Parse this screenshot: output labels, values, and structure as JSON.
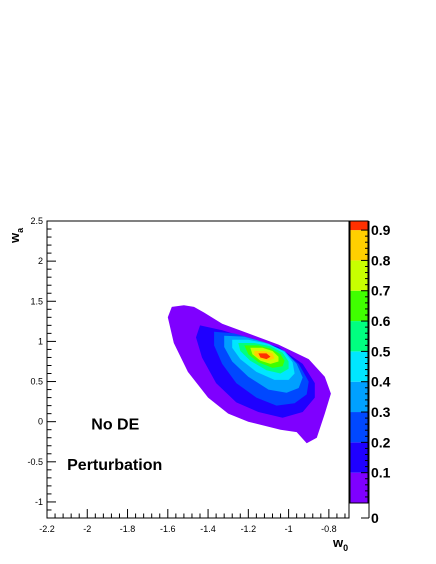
{
  "chart_data": {
    "type": "contour",
    "xlabel": "w",
    "xlabel_sub": "0",
    "ylabel": "w",
    "ylabel_sub": "a",
    "xlim": [
      -2.2,
      -0.7
    ],
    "ylim": [
      -1.2,
      2.5
    ],
    "x_ticks": [
      -2.2,
      -2,
      -1.8,
      -1.6,
      -1.4,
      -1.2,
      -1,
      -0.8
    ],
    "x_tick_labels": [
      "-2.2",
      "-2",
      "-1.8",
      "-1.6",
      "-1.4",
      "-1.2",
      "-1",
      "-0.8"
    ],
    "y_ticks": [
      -1,
      -0.5,
      0,
      0.5,
      1,
      1.5,
      2,
      2.5
    ],
    "y_tick_labels": [
      "-1",
      "-0.5",
      "0",
      "0.5",
      "1",
      "1.5",
      "2",
      "2.5"
    ],
    "grid": false,
    "colorbar": {
      "range": [
        0,
        0.93
      ],
      "ticks": [
        0,
        0.1,
        0.2,
        0.3,
        0.4,
        0.5,
        0.6,
        0.7,
        0.8,
        0.9
      ],
      "tick_labels": [
        "0",
        "0.1",
        "0.2",
        "0.3",
        "0.4",
        "0.5",
        "0.6",
        "0.7",
        "0.8",
        "0.9"
      ],
      "levels": [
        {
          "low": 0.0,
          "color": "#7f00ff"
        },
        {
          "low": 0.1,
          "color": "#1f00ff"
        },
        {
          "low": 0.2,
          "color": "#0048ff"
        },
        {
          "low": 0.3,
          "color": "#00a0ff"
        },
        {
          "low": 0.4,
          "color": "#00e6ff"
        },
        {
          "low": 0.5,
          "color": "#00ff80"
        },
        {
          "low": 0.6,
          "color": "#40ff00"
        },
        {
          "low": 0.7,
          "color": "#c8ff00"
        },
        {
          "low": 0.8,
          "color": "#ffd000"
        },
        {
          "low": 0.9,
          "color": "#ff3000"
        }
      ]
    },
    "peak": {
      "w0": -1.13,
      "wa": 0.8,
      "value": 0.93
    },
    "contours": [
      {
        "level": 0.03,
        "color": "#7f00ff",
        "points": [
          [
            -1.58,
            1.43
          ],
          [
            -1.52,
            1.45
          ],
          [
            -1.47,
            1.43
          ],
          [
            -1.42,
            1.36
          ],
          [
            -1.33,
            1.22
          ],
          [
            -1.2,
            1.1
          ],
          [
            -1.05,
            0.96
          ],
          [
            -0.9,
            0.78
          ],
          [
            -0.82,
            0.56
          ],
          [
            -0.79,
            0.35
          ],
          [
            -0.82,
            0.1
          ],
          [
            -0.86,
            -0.2
          ],
          [
            -0.91,
            -0.27
          ],
          [
            -0.96,
            -0.13
          ],
          [
            -1.04,
            -0.1
          ],
          [
            -1.2,
            0.0
          ],
          [
            -1.3,
            0.1
          ],
          [
            -1.4,
            0.3
          ],
          [
            -1.5,
            0.62
          ],
          [
            -1.57,
            0.98
          ],
          [
            -1.6,
            1.3
          ]
        ]
      },
      {
        "level": 0.1,
        "color": "#1f00ff",
        "points": [
          [
            -1.44,
            1.2
          ],
          [
            -1.33,
            1.14
          ],
          [
            -1.2,
            1.04
          ],
          [
            -1.05,
            0.93
          ],
          [
            -0.93,
            0.72
          ],
          [
            -0.87,
            0.48
          ],
          [
            -0.87,
            0.3
          ],
          [
            -0.93,
            0.12
          ],
          [
            -1.03,
            0.05
          ],
          [
            -1.15,
            0.12
          ],
          [
            -1.26,
            0.24
          ],
          [
            -1.36,
            0.48
          ],
          [
            -1.43,
            0.8
          ],
          [
            -1.46,
            1.05
          ]
        ]
      },
      {
        "level": 0.2,
        "color": "#0048ff",
        "points": [
          [
            -1.37,
            1.12
          ],
          [
            -1.27,
            1.1
          ],
          [
            -1.16,
            1.02
          ],
          [
            -1.04,
            0.9
          ],
          [
            -0.95,
            0.72
          ],
          [
            -0.9,
            0.5
          ],
          [
            -0.91,
            0.34
          ],
          [
            -0.97,
            0.23
          ],
          [
            -1.06,
            0.2
          ],
          [
            -1.16,
            0.3
          ],
          [
            -1.26,
            0.48
          ],
          [
            -1.33,
            0.72
          ],
          [
            -1.37,
            0.95
          ]
        ]
      },
      {
        "level": 0.3,
        "color": "#00a0ff",
        "points": [
          [
            -1.32,
            1.07
          ],
          [
            -1.22,
            1.06
          ],
          [
            -1.12,
            0.99
          ],
          [
            -1.02,
            0.88
          ],
          [
            -0.96,
            0.72
          ],
          [
            -0.93,
            0.55
          ],
          [
            -0.95,
            0.42
          ],
          [
            -1.01,
            0.36
          ],
          [
            -1.1,
            0.4
          ],
          [
            -1.2,
            0.56
          ],
          [
            -1.28,
            0.75
          ],
          [
            -1.32,
            0.93
          ]
        ]
      },
      {
        "level": 0.4,
        "color": "#00e6ff",
        "points": [
          [
            -1.28,
            1.02
          ],
          [
            -1.2,
            1.02
          ],
          [
            -1.1,
            0.97
          ],
          [
            -1.02,
            0.87
          ],
          [
            -0.98,
            0.74
          ],
          [
            -0.97,
            0.6
          ],
          [
            -1.0,
            0.52
          ],
          [
            -1.07,
            0.52
          ],
          [
            -1.16,
            0.62
          ],
          [
            -1.24,
            0.78
          ],
          [
            -1.28,
            0.92
          ]
        ]
      },
      {
        "level": 0.5,
        "color": "#00ff80",
        "points": [
          [
            -1.25,
            0.98
          ],
          [
            -1.17,
            0.98
          ],
          [
            -1.09,
            0.94
          ],
          [
            -1.03,
            0.86
          ],
          [
            -1.0,
            0.75
          ],
          [
            -1.0,
            0.66
          ],
          [
            -1.04,
            0.6
          ],
          [
            -1.11,
            0.64
          ],
          [
            -1.19,
            0.76
          ],
          [
            -1.24,
            0.88
          ]
        ]
      },
      {
        "level": 0.6,
        "color": "#40ff00",
        "points": [
          [
            -1.22,
            0.95
          ],
          [
            -1.15,
            0.95
          ],
          [
            -1.09,
            0.91
          ],
          [
            -1.04,
            0.84
          ],
          [
            -1.02,
            0.76
          ],
          [
            -1.03,
            0.69
          ],
          [
            -1.08,
            0.67
          ],
          [
            -1.15,
            0.74
          ],
          [
            -1.2,
            0.84
          ]
        ]
      },
      {
        "level": 0.7,
        "color": "#c8ff00",
        "points": [
          [
            -1.19,
            0.92
          ],
          [
            -1.13,
            0.92
          ],
          [
            -1.08,
            0.88
          ],
          [
            -1.05,
            0.81
          ],
          [
            -1.05,
            0.75
          ],
          [
            -1.09,
            0.72
          ],
          [
            -1.14,
            0.76
          ],
          [
            -1.18,
            0.84
          ]
        ]
      },
      {
        "level": 0.8,
        "color": "#ffd000",
        "points": [
          [
            -1.17,
            0.88
          ],
          [
            -1.12,
            0.88
          ],
          [
            -1.08,
            0.85
          ],
          [
            -1.07,
            0.79
          ],
          [
            -1.1,
            0.76
          ],
          [
            -1.14,
            0.78
          ],
          [
            -1.17,
            0.83
          ]
        ]
      },
      {
        "level": 0.9,
        "color": "#ff3000",
        "points": [
          [
            -1.15,
            0.85
          ],
          [
            -1.11,
            0.85
          ],
          [
            -1.09,
            0.81
          ],
          [
            -1.11,
            0.78
          ],
          [
            -1.14,
            0.8
          ]
        ]
      }
    ],
    "annotations": [
      {
        "text": "No DE",
        "at": [
          -1.98,
          -0.1
        ]
      },
      {
        "text": "Perturbation",
        "at": [
          -2.1,
          -0.6
        ]
      }
    ]
  }
}
